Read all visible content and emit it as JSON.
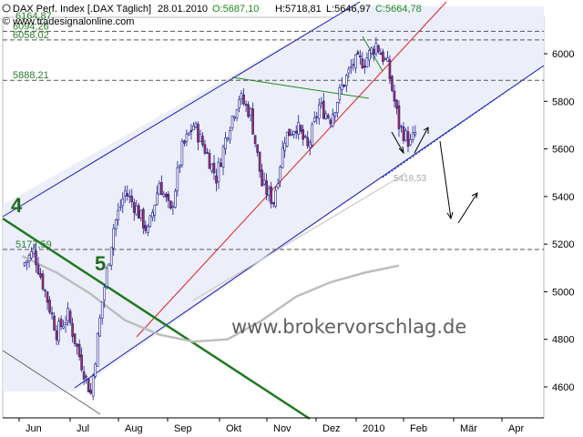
{
  "header": {
    "instrument": "DAX Perf. Index [.DAX Täglich]",
    "date": "28.01.2010",
    "open": "O:5687,10",
    "high": "H:5718,81",
    "low": "L:5646,97",
    "close": "C:5664,78",
    "copyright": "© www.tradesignalonline.com",
    "top_level_label": "6164,87"
  },
  "watermark": "www.brokervorschlag.de",
  "colors": {
    "bull": "#1a1a8c",
    "bear": "#b0304a",
    "channel_fill": "#eceffa",
    "channel_line": "#1a1ab0",
    "red_trend": "#e02020",
    "green_trend": "#1f8a1f",
    "levels": "#555555",
    "ma": "#bdbdbd"
  },
  "chart_data": {
    "type": "candlestick",
    "title": "DAX Perf. Index [.DAX Täglich]",
    "ylim": [
      4480,
      6190
    ],
    "yticks": [
      4600,
      4800,
      5000,
      5200,
      5400,
      5600,
      5800,
      6000
    ],
    "x_labels": [
      "Jun",
      "Jul",
      "Aug",
      "Sep",
      "Okt",
      "Nov",
      "Dez",
      "2010",
      "Feb",
      "Mär",
      "Apr"
    ],
    "levels": [
      {
        "label": "6094,26",
        "value": 6094.26
      },
      {
        "label": "6058,02",
        "value": 6058.02
      },
      {
        "label": "5888,21",
        "value": 5888.21
      },
      {
        "label": "5177,59",
        "value": 5177.59
      }
    ],
    "fib_label": "5418,53",
    "wave_labels": [
      "4",
      "5"
    ],
    "close_path": [
      {
        "d": "2009-06-01",
        "c": 5110
      },
      {
        "d": "2009-06-08",
        "c": 5170
      },
      {
        "d": "2009-06-15",
        "c": 5000
      },
      {
        "d": "2009-06-22",
        "c": 4830
      },
      {
        "d": "2009-06-29",
        "c": 4900
      },
      {
        "d": "2009-07-06",
        "c": 4730
      },
      {
        "d": "2009-07-13",
        "c": 4570
      },
      {
        "d": "2009-07-20",
        "c": 4960
      },
      {
        "d": "2009-07-27",
        "c": 5270
      },
      {
        "d": "2009-08-03",
        "c": 5420
      },
      {
        "d": "2009-08-10",
        "c": 5350
      },
      {
        "d": "2009-08-17",
        "c": 5250
      },
      {
        "d": "2009-08-24",
        "c": 5460
      },
      {
        "d": "2009-08-31",
        "c": 5330
      },
      {
        "d": "2009-09-07",
        "c": 5600
      },
      {
        "d": "2009-09-14",
        "c": 5700
      },
      {
        "d": "2009-09-21",
        "c": 5600
      },
      {
        "d": "2009-09-28",
        "c": 5480
      },
      {
        "d": "2009-10-05",
        "c": 5680
      },
      {
        "d": "2009-10-12",
        "c": 5820
      },
      {
        "d": "2009-10-19",
        "c": 5750
      },
      {
        "d": "2009-10-26",
        "c": 5450
      },
      {
        "d": "2009-11-02",
        "c": 5380
      },
      {
        "d": "2009-11-09",
        "c": 5650
      },
      {
        "d": "2009-11-16",
        "c": 5700
      },
      {
        "d": "2009-11-23",
        "c": 5600
      },
      {
        "d": "2009-11-30",
        "c": 5780
      },
      {
        "d": "2009-12-07",
        "c": 5730
      },
      {
        "d": "2009-12-14",
        "c": 5860
      },
      {
        "d": "2009-12-21",
        "c": 5960
      },
      {
        "d": "2009-12-28",
        "c": 5970
      },
      {
        "d": "2010-01-04",
        "c": 6040
      },
      {
        "d": "2010-01-11",
        "c": 5950
      },
      {
        "d": "2010-01-18",
        "c": 5700
      },
      {
        "d": "2010-01-25",
        "c": 5620
      },
      {
        "d": "2010-01-28",
        "c": 5665
      }
    ],
    "moving_average": [
      {
        "d": "2009-06-01",
        "v": 5150
      },
      {
        "d": "2009-06-22",
        "v": 5080
      },
      {
        "d": "2009-07-13",
        "v": 4990
      },
      {
        "d": "2009-08-03",
        "v": 4880
      },
      {
        "d": "2009-08-24",
        "v": 4820
      },
      {
        "d": "2009-09-14",
        "v": 4790
      },
      {
        "d": "2009-10-05",
        "v": 4800
      },
      {
        "d": "2009-10-26",
        "v": 4880
      },
      {
        "d": "2009-11-16",
        "v": 4980
      },
      {
        "d": "2009-12-07",
        "v": 5040
      },
      {
        "d": "2009-12-28",
        "v": 5080
      },
      {
        "d": "2010-01-18",
        "v": 5110
      }
    ]
  }
}
